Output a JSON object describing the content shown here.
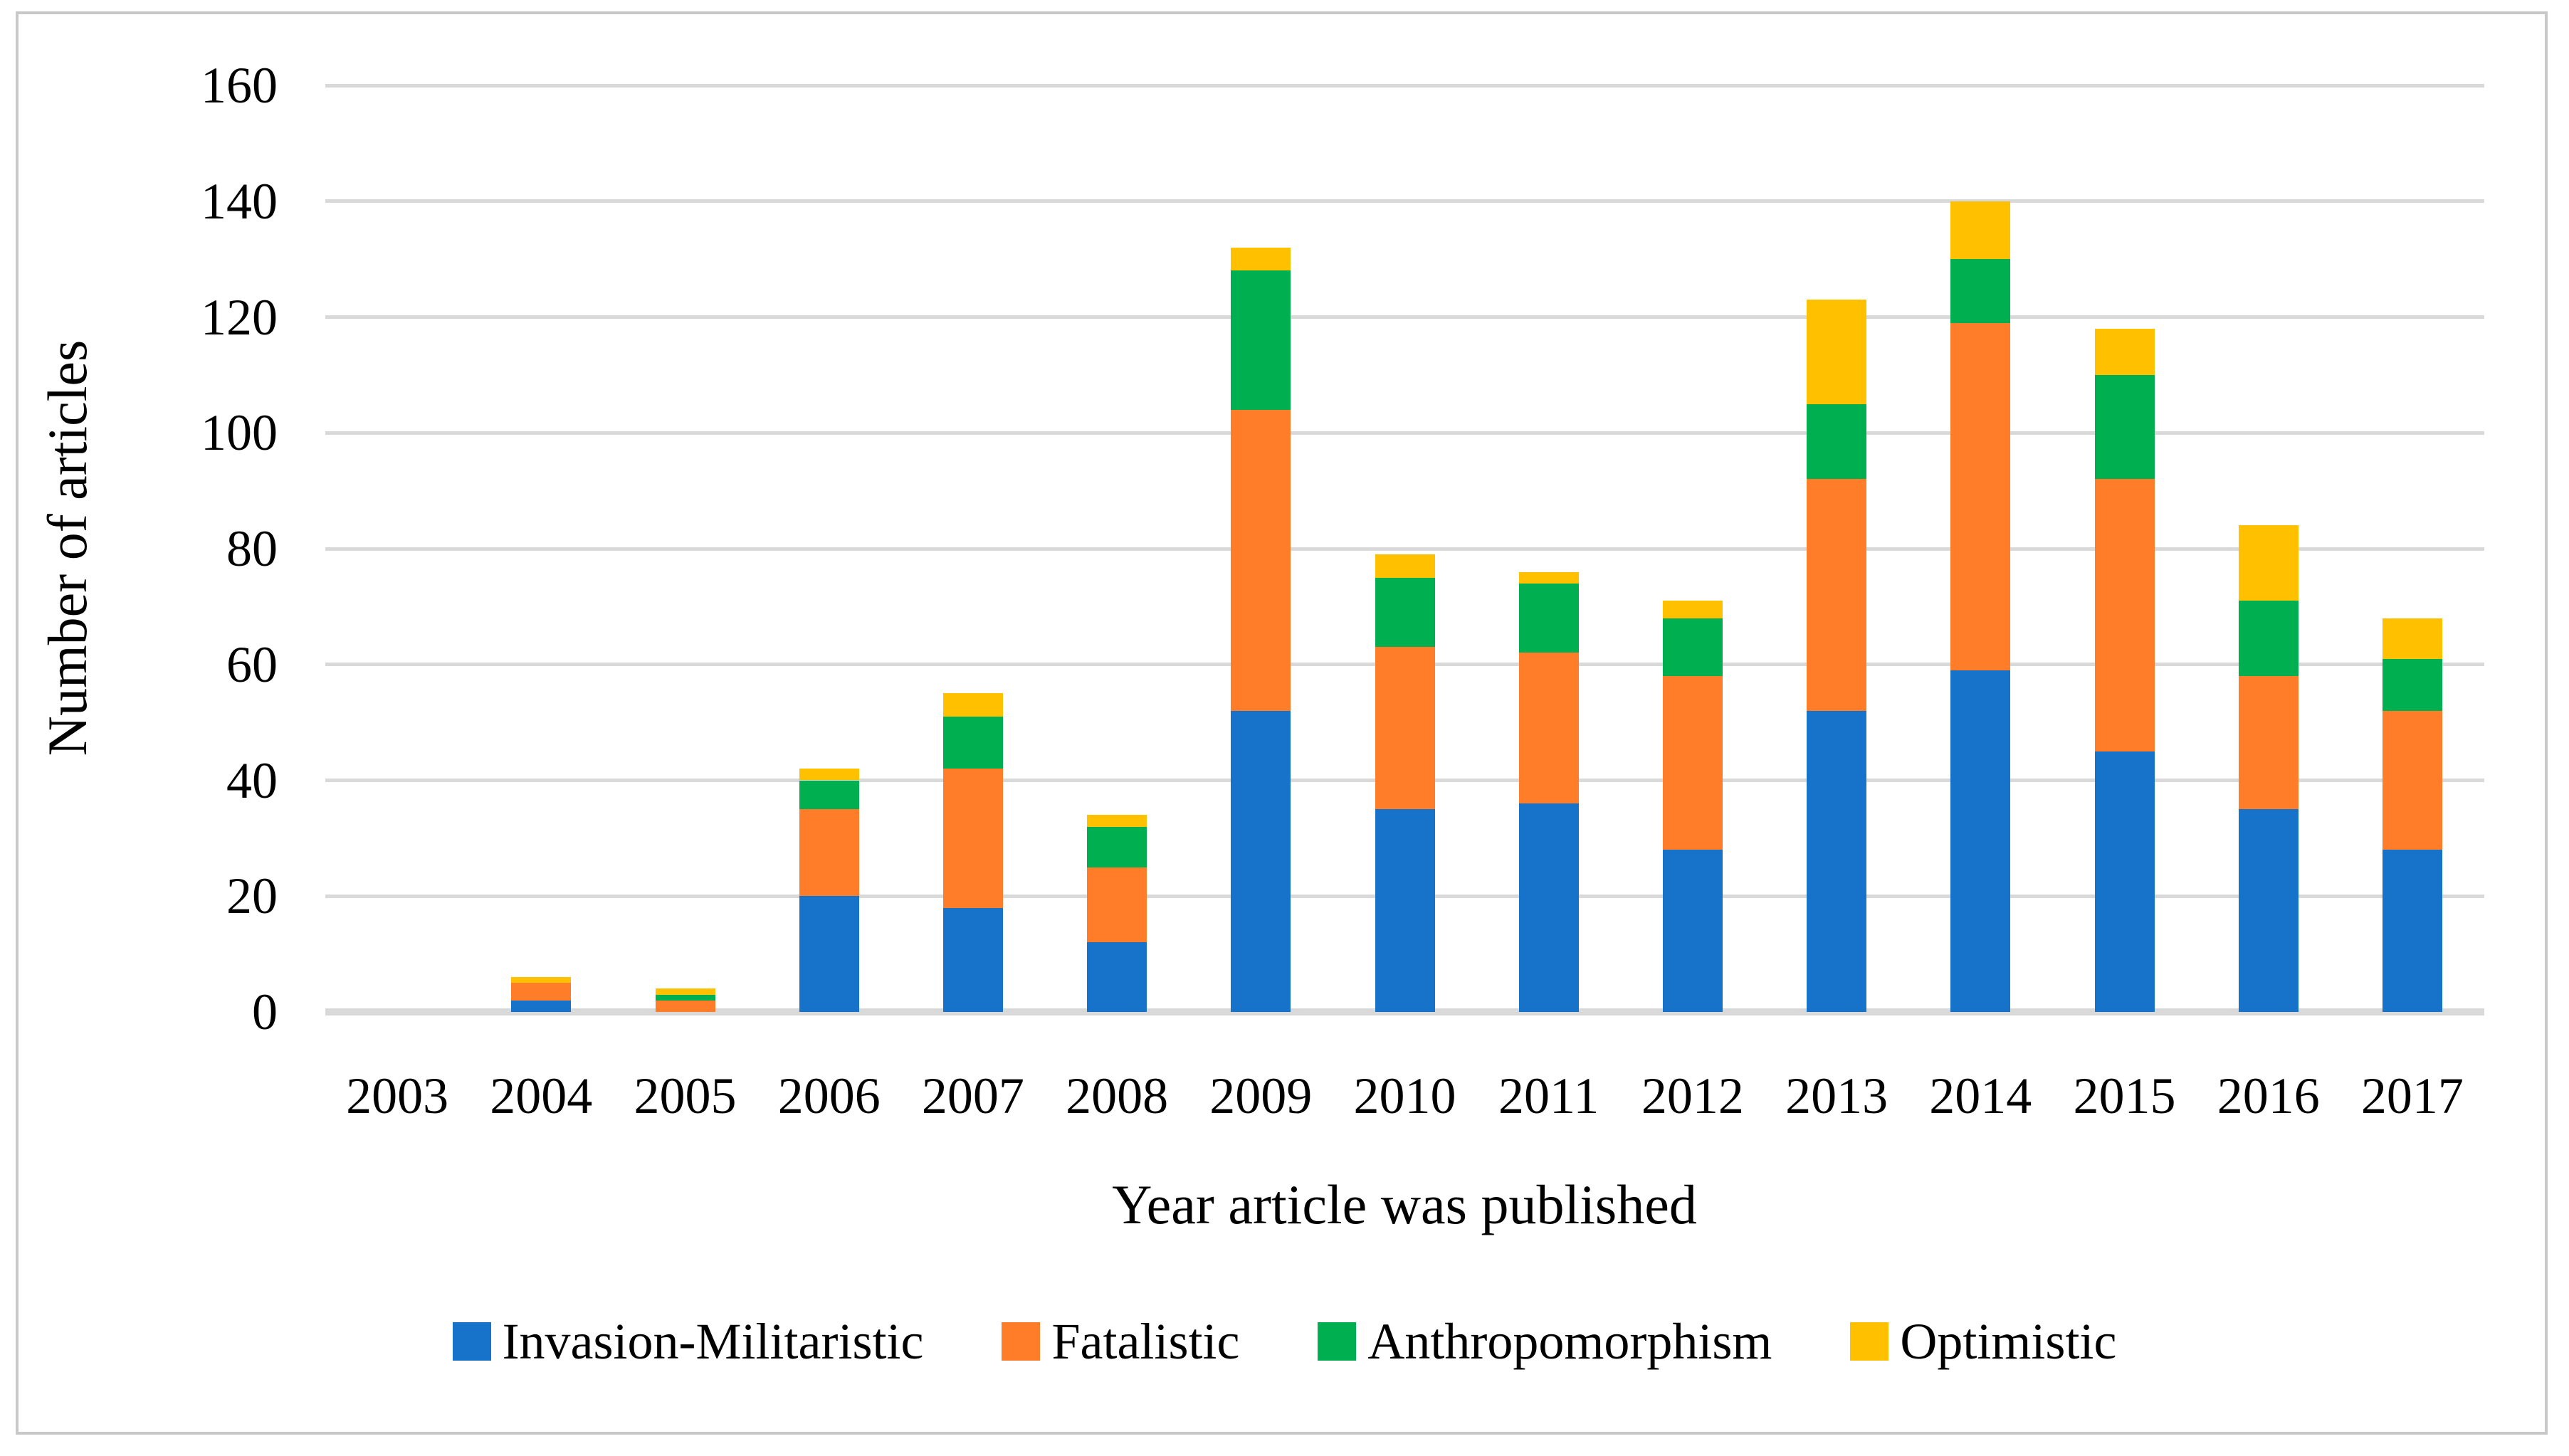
{
  "figure": {
    "border_color": "#c8c8c8",
    "background": "#ffffff"
  },
  "chart_data": {
    "type": "bar",
    "stacked": true,
    "title": "",
    "xlabel": "Year article was published",
    "ylabel": "Number of articles",
    "categories": [
      "2003",
      "2004",
      "2005",
      "2006",
      "2007",
      "2008",
      "2009",
      "2010",
      "2011",
      "2012",
      "2013",
      "2014",
      "2015",
      "2016",
      "2017"
    ],
    "series": [
      {
        "name": "Invasion-Militaristic",
        "color": "#1772C9",
        "values": [
          0,
          2,
          0,
          20,
          18,
          12,
          52,
          35,
          36,
          28,
          52,
          59,
          45,
          35,
          28
        ]
      },
      {
        "name": "Fatalistic",
        "color": "#FF7D28",
        "values": [
          0,
          3,
          2,
          15,
          24,
          13,
          52,
          28,
          26,
          30,
          40,
          60,
          47,
          23,
          24
        ]
      },
      {
        "name": "Anthropomorphism",
        "color": "#00B050",
        "values": [
          0,
          0,
          1,
          5,
          9,
          7,
          24,
          12,
          12,
          10,
          13,
          11,
          18,
          13,
          9
        ]
      },
      {
        "name": "Optimistic",
        "color": "#FFC000",
        "values": [
          0,
          1,
          1,
          2,
          4,
          2,
          4,
          4,
          2,
          3,
          18,
          10,
          8,
          13,
          7
        ]
      }
    ],
    "totals": [
      0,
      6,
      4,
      42,
      55,
      34,
      132,
      79,
      76,
      71,
      123,
      140,
      118,
      84,
      68
    ],
    "y_ticks": [
      "0",
      "20",
      "40",
      "60",
      "80",
      "100",
      "120",
      "140",
      "160"
    ],
    "ylim": [
      0,
      160
    ],
    "grid": true,
    "gridline_color": "#D9D9D9",
    "legend_position": "bottom"
  }
}
